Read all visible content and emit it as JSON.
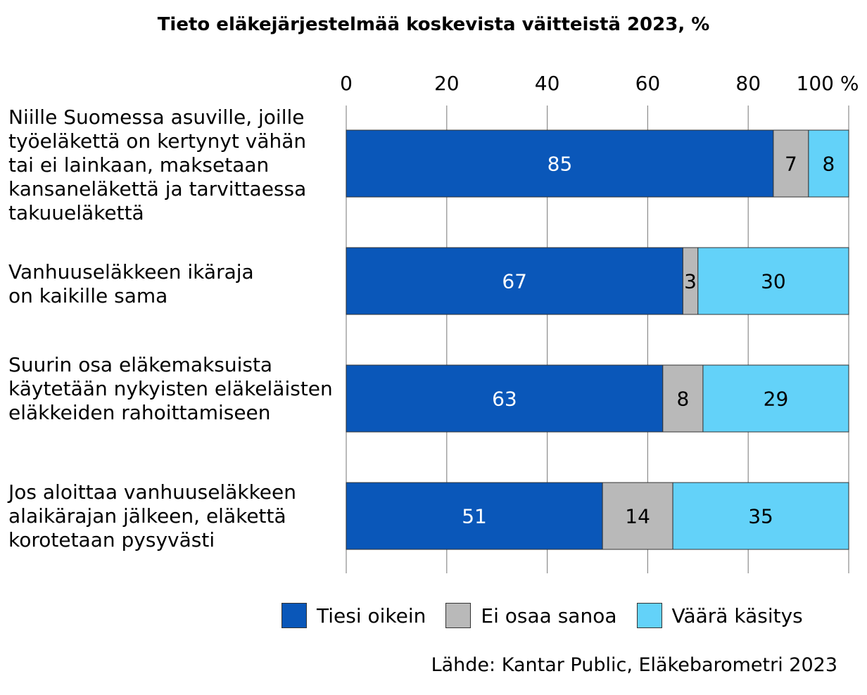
{
  "chart_data": {
    "type": "bar",
    "orientation": "horizontal",
    "stacked": true,
    "title": "Tieto eläkejärjestelmää koskevista väitteistä 2023, %",
    "categories": [
      "Niille Suomessa asuville, joille työeläkettä on kertynyt vähän tai ei lainkaan, maksetaan kansaneläkettä ja tarvittaessa takuueläkettä",
      "Vanhuuseläkkeen ikäraja on kaikille sama",
      "Suurin osa eläkemaksuista käytetään nykyisten eläkeläisten eläkkeiden rahoittamiseen",
      "Jos aloittaa vanhuuseläkkeen alaikärajan jälkeen, eläkettä korotetaan pysyvästi"
    ],
    "category_lines": [
      [
        "Niille Suomessa asuville, joille",
        "työeläkettä on kertynyt vähän",
        "tai ei lainkaan, maksetaan",
        "kansaneläkettä ja tarvittaessa",
        "takuueläkettä"
      ],
      [
        "Vanhuuseläkkeen ikäraja",
        "on kaikille sama"
      ],
      [
        "Suurin osa eläkemaksuista",
        "käytetään nykyisten eläkeläisten",
        "eläkkeiden rahoittamiseen"
      ],
      [
        "Jos aloittaa vanhuuseläkkeen",
        "alaikärajan jälkeen, eläkettä",
        "korotetaan pysyvästi"
      ]
    ],
    "series": [
      {
        "name": "Tiesi oikein",
        "color": "#0a57b9",
        "label_color": "#ffffff",
        "values": [
          85,
          67,
          63,
          51
        ]
      },
      {
        "name": "Ei osaa sanoa",
        "color": "#b9b9b9",
        "label_color": "#000000",
        "values": [
          7,
          3,
          8,
          14
        ]
      },
      {
        "name": "Väärä käsitys",
        "color": "#63d2f9",
        "label_color": "#000000",
        "values": [
          8,
          30,
          29,
          35
        ]
      }
    ],
    "xlim": [
      0,
      100
    ],
    "xticks": [
      0,
      20,
      40,
      60,
      80,
      100
    ],
    "xtick_labels": [
      "0",
      "20",
      "40",
      "60",
      "80",
      "100 %"
    ],
    "xaxis_position": "top",
    "grid": true,
    "legend_position": "bottom",
    "source": "Lähde: Kantar Public, Eläkebarometri 2023"
  }
}
